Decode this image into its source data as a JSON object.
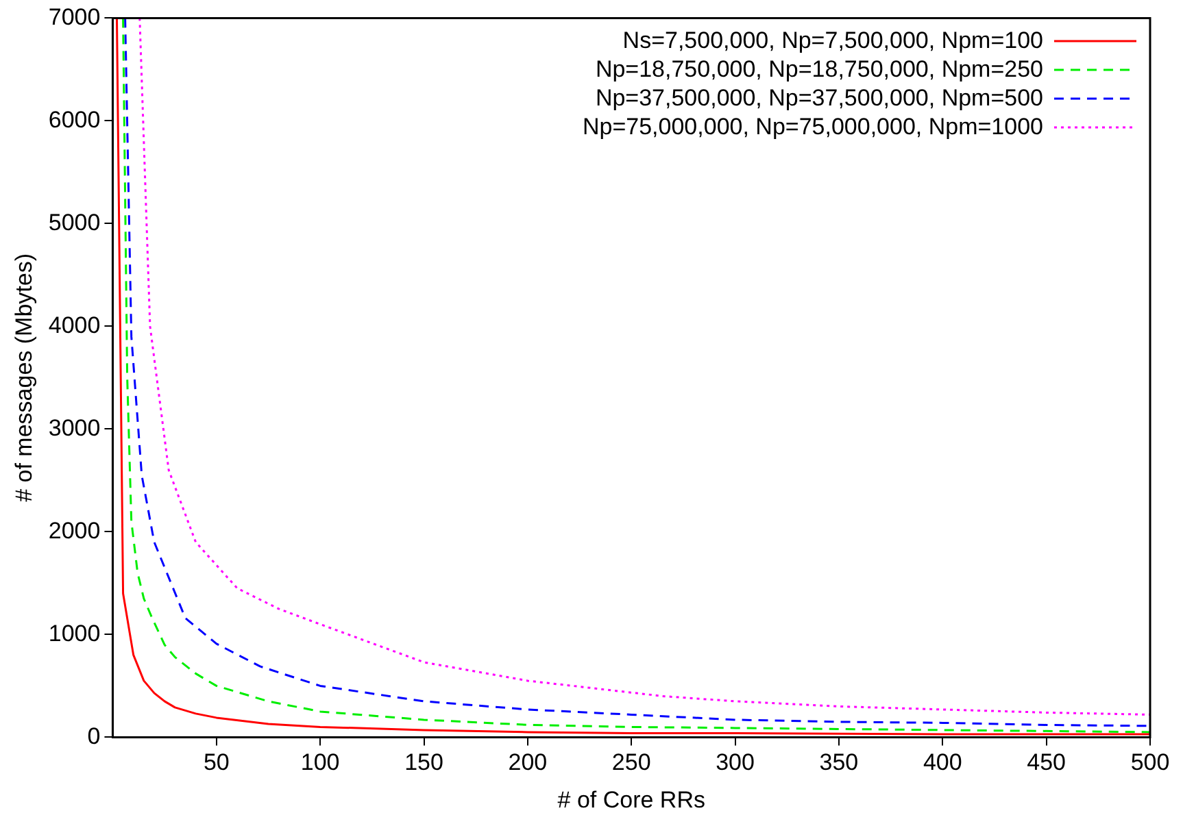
{
  "chart_data": {
    "type": "line",
    "xlabel": "# of Core RRs",
    "ylabel": "# of messages (Mbytes)",
    "xlim": [
      0,
      500
    ],
    "xticks": [
      50,
      100,
      150,
      200,
      250,
      300,
      350,
      400,
      450,
      500
    ],
    "ylim": [
      0,
      7000
    ],
    "yticks": [
      0,
      1000,
      2000,
      3000,
      4000,
      5000,
      6000,
      7000
    ],
    "grid": false,
    "legend": "top right",
    "marker": "none",
    "series": [
      {
        "name": "Ns=7,500,000, Np=7,500,000, Npm=100",
        "color": "#ff0000",
        "line_style": "solid",
        "x": [
          2,
          5,
          10,
          15,
          20,
          25,
          30,
          40,
          50,
          75,
          100,
          150,
          200,
          250,
          300,
          400,
          500
        ],
        "values": [
          7000,
          1400,
          800,
          550,
          430,
          350,
          290,
          230,
          190,
          130,
          100,
          70,
          50,
          40,
          40,
          30,
          30
        ]
      },
      {
        "name": "Np=18,750,000, Np=18,750,000, Npm=250",
        "color": "#00ee00",
        "line_style": "dashed",
        "x": [
          5,
          7,
          9,
          12,
          15,
          19,
          25,
          30,
          40,
          50,
          75,
          100,
          150,
          200,
          250,
          300,
          400,
          500
        ],
        "values": [
          7000,
          3500,
          2100,
          1600,
          1350,
          1160,
          900,
          780,
          620,
          500,
          350,
          250,
          170,
          120,
          100,
          90,
          70,
          50
        ]
      },
      {
        "name": "Np=37,500,000, Np=37,500,000, Npm=500",
        "color": "#0000ff",
        "line_style": "dashed",
        "x": [
          6,
          9,
          14,
          20,
          35,
          50,
          71,
          100,
          150,
          200,
          250,
          300,
          350,
          400,
          450,
          500
        ],
        "values": [
          7000,
          3900,
          2550,
          1900,
          1160,
          910,
          690,
          500,
          350,
          270,
          220,
          170,
          150,
          140,
          120,
          110
        ]
      },
      {
        "name": "Np=75,000,000, Np=75,000,000, Npm=1000",
        "color": "#ff00ff",
        "line_style": "dotted",
        "x": [
          13,
          18,
          27,
          40,
          60,
          80,
          100,
          150,
          200,
          265,
          300,
          350,
          400,
          450,
          500
        ],
        "values": [
          7000,
          4000,
          2600,
          1900,
          1450,
          1250,
          1100,
          730,
          550,
          400,
          350,
          300,
          270,
          240,
          220
        ]
      }
    ]
  }
}
